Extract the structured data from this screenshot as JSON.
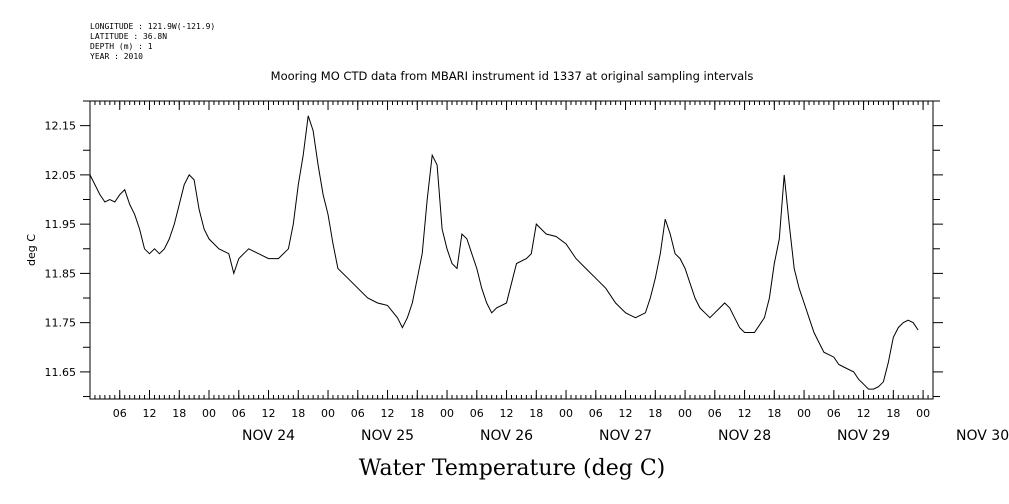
{
  "metadata": {
    "longitude": "LONGITUDE : 121.9W(-121.9)",
    "latitude": "LATITUDE : 36.8N",
    "depth": "DEPTH (m) : 1",
    "year": "YEAR : 2010"
  },
  "chart_data": {
    "type": "line",
    "title": "Mooring MO CTD data from MBARI instrument id 1337 at original sampling intervals",
    "xlabel": "Water Temperature (deg C)",
    "ylabel": "deg C",
    "ylim": [
      11.595,
      12.2
    ],
    "yticks": [
      "12.15",
      "12.05",
      "11.95",
      "11.85",
      "11.75",
      "11.65"
    ],
    "x_units": "hours since NOV 23 00:00 (2010)",
    "xlim": [
      0,
      170
    ],
    "hour_ticks": [
      "06",
      "12",
      "18",
      "00"
    ],
    "day_labels": [
      "NOV 24",
      "NOV 25",
      "NOV 26",
      "NOV 27",
      "NOV 28",
      "NOV 29",
      "NOV 30"
    ],
    "grid": false,
    "series": [
      {
        "values": [
          [
            0,
            12.05
          ],
          [
            2,
            12.01
          ],
          [
            3,
            11.995
          ],
          [
            4,
            12.0
          ],
          [
            5,
            11.995
          ],
          [
            6,
            12.01
          ],
          [
            7,
            12.02
          ],
          [
            8,
            11.99
          ],
          [
            9,
            11.97
          ],
          [
            10,
            11.94
          ],
          [
            11,
            11.9
          ],
          [
            12,
            11.89
          ],
          [
            13,
            11.9
          ],
          [
            14,
            11.89
          ],
          [
            15,
            11.9
          ],
          [
            16,
            11.92
          ],
          [
            17,
            11.95
          ],
          [
            18,
            11.99
          ],
          [
            19,
            12.03
          ],
          [
            20,
            12.05
          ],
          [
            21,
            12.04
          ],
          [
            22,
            11.98
          ],
          [
            23,
            11.94
          ],
          [
            24,
            11.92
          ],
          [
            26,
            11.9
          ],
          [
            28,
            11.89
          ],
          [
            29,
            11.85
          ],
          [
            30,
            11.88
          ],
          [
            31,
            11.89
          ],
          [
            32,
            11.9
          ],
          [
            34,
            11.89
          ],
          [
            36,
            11.88
          ],
          [
            38,
            11.88
          ],
          [
            40,
            11.9
          ],
          [
            41,
            11.95
          ],
          [
            42,
            12.03
          ],
          [
            43,
            12.09
          ],
          [
            44,
            12.17
          ],
          [
            45,
            12.14
          ],
          [
            46,
            12.07
          ],
          [
            47,
            12.01
          ],
          [
            48,
            11.97
          ],
          [
            49,
            11.91
          ],
          [
            50,
            11.86
          ],
          [
            52,
            11.84
          ],
          [
            54,
            11.82
          ],
          [
            56,
            11.8
          ],
          [
            58,
            11.79
          ],
          [
            60,
            11.785
          ],
          [
            62,
            11.76
          ],
          [
            63,
            11.74
          ],
          [
            64,
            11.76
          ],
          [
            65,
            11.79
          ],
          [
            66,
            11.84
          ],
          [
            67,
            11.89
          ],
          [
            68,
            12.0
          ],
          [
            69,
            12.09
          ],
          [
            70,
            12.07
          ],
          [
            71,
            11.94
          ],
          [
            72,
            11.9
          ],
          [
            73,
            11.87
          ],
          [
            74,
            11.86
          ],
          [
            75,
            11.93
          ],
          [
            76,
            11.92
          ],
          [
            77,
            11.89
          ],
          [
            78,
            11.86
          ],
          [
            79,
            11.82
          ],
          [
            80,
            11.79
          ],
          [
            81,
            11.77
          ],
          [
            82,
            11.78
          ],
          [
            84,
            11.79
          ],
          [
            85,
            11.83
          ],
          [
            86,
            11.87
          ],
          [
            88,
            11.88
          ],
          [
            89,
            11.89
          ],
          [
            90,
            11.95
          ],
          [
            91,
            11.94
          ],
          [
            92,
            11.93
          ],
          [
            94,
            11.925
          ],
          [
            96,
            11.91
          ],
          [
            98,
            11.88
          ],
          [
            100,
            11.86
          ],
          [
            102,
            11.84
          ],
          [
            104,
            11.82
          ],
          [
            106,
            11.79
          ],
          [
            108,
            11.77
          ],
          [
            109,
            11.765
          ],
          [
            110,
            11.76
          ],
          [
            112,
            11.77
          ],
          [
            113,
            11.8
          ],
          [
            114,
            11.84
          ],
          [
            115,
            11.89
          ],
          [
            116,
            11.96
          ],
          [
            117,
            11.93
          ],
          [
            118,
            11.89
          ],
          [
            119,
            11.88
          ],
          [
            120,
            11.86
          ],
          [
            121,
            11.83
          ],
          [
            122,
            11.8
          ],
          [
            123,
            11.78
          ],
          [
            124,
            11.77
          ],
          [
            125,
            11.76
          ],
          [
            126,
            11.77
          ],
          [
            127,
            11.78
          ],
          [
            128,
            11.79
          ],
          [
            129,
            11.78
          ],
          [
            130,
            11.76
          ],
          [
            131,
            11.74
          ],
          [
            132,
            11.73
          ],
          [
            134,
            11.73
          ],
          [
            136,
            11.76
          ],
          [
            137,
            11.8
          ],
          [
            138,
            11.87
          ],
          [
            139,
            11.92
          ],
          [
            140,
            12.05
          ],
          [
            141,
            11.95
          ],
          [
            142,
            11.86
          ],
          [
            143,
            11.82
          ],
          [
            144,
            11.79
          ],
          [
            145,
            11.76
          ],
          [
            146,
            11.73
          ],
          [
            147,
            11.71
          ],
          [
            148,
            11.69
          ],
          [
            150,
            11.68
          ],
          [
            151,
            11.665
          ],
          [
            152,
            11.66
          ],
          [
            154,
            11.65
          ],
          [
            155,
            11.635
          ],
          [
            156,
            11.625
          ],
          [
            157,
            11.615
          ],
          [
            158,
            11.615
          ],
          [
            159,
            11.62
          ],
          [
            160,
            11.63
          ],
          [
            161,
            11.67
          ],
          [
            162,
            11.72
          ],
          [
            163,
            11.74
          ],
          [
            164,
            11.75
          ],
          [
            165,
            11.755
          ],
          [
            166,
            11.75
          ],
          [
            167,
            11.735
          ]
        ]
      }
    ]
  },
  "style": {
    "line_color": "#000000",
    "background": "#ffffff"
  }
}
